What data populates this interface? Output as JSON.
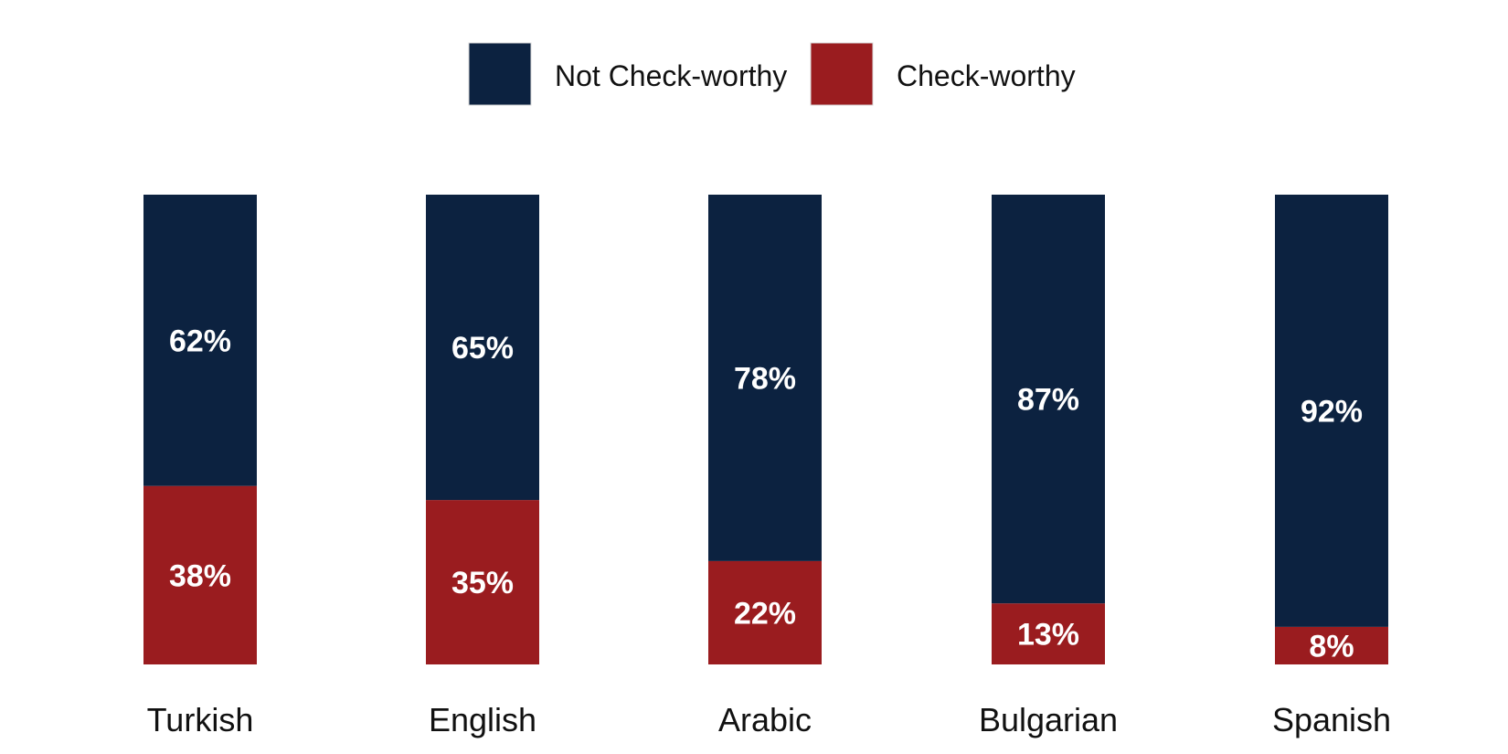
{
  "chart_data": {
    "type": "bar",
    "stacked": true,
    "percent_stacked": true,
    "categories": [
      "Turkish",
      "English",
      "Arabic",
      "Bulgarian",
      "Spanish"
    ],
    "series": [
      {
        "name": "Not Check-worthy",
        "values": [
          62,
          65,
          78,
          87,
          92
        ],
        "labels": [
          "62%",
          "65%",
          "78%",
          "87%",
          "92%"
        ],
        "color": "#0c2240"
      },
      {
        "name": "Check-worthy",
        "values": [
          38,
          35,
          22,
          13,
          8
        ],
        "labels": [
          "38%",
          "35%",
          "22%",
          "13%",
          "8%"
        ],
        "color": "#9a1c1f"
      }
    ],
    "ylim": [
      0,
      100
    ],
    "legend_position": "top-center",
    "grid": false,
    "axes_visible": false
  }
}
